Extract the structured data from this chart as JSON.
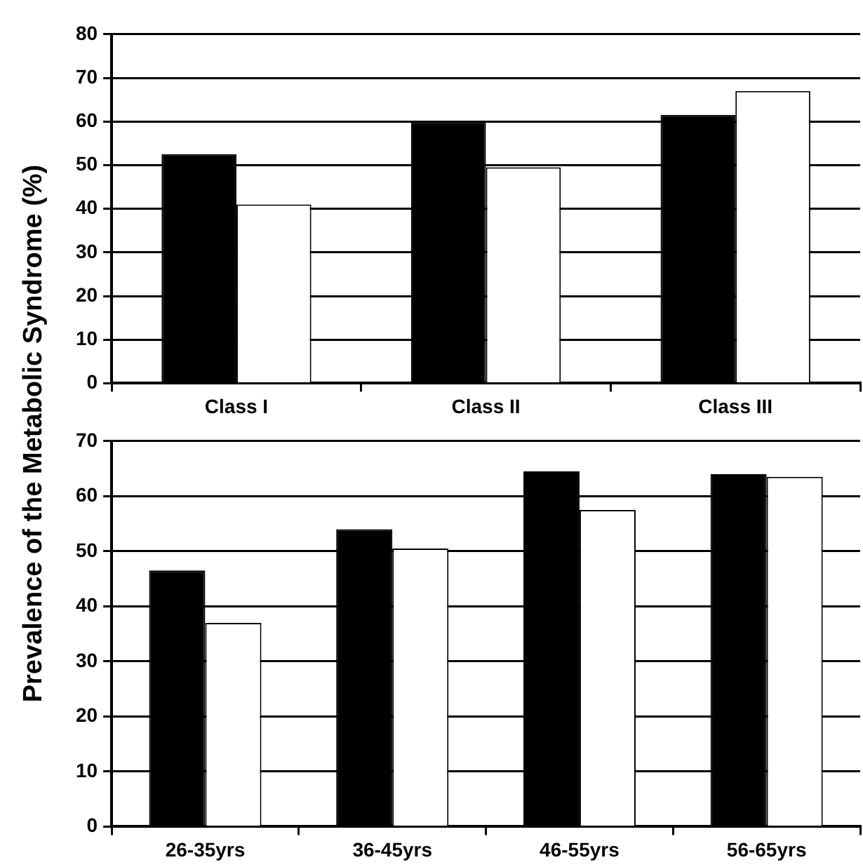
{
  "chart_data": [
    {
      "type": "bar",
      "ylabel": "Prevalence of the Metabolic Syndrome  (%)",
      "categories": [
        "Class I",
        "Class II",
        "Class III"
      ],
      "series": [
        {
          "color": "#000000",
          "values": [
            52.5,
            60,
            61.5
          ]
        },
        {
          "color": "#ffffff",
          "values": [
            41,
            49.5,
            67
          ]
        }
      ],
      "ylim": [
        0,
        80
      ],
      "yticks": [
        0,
        10,
        20,
        30,
        40,
        50,
        60,
        70,
        80
      ],
      "grid": "y",
      "legend": false
    },
    {
      "type": "bar",
      "categories": [
        "26-35yrs",
        "36-45yrs",
        "46-55yrs",
        "56-65yrs"
      ],
      "series": [
        {
          "color": "#000000",
          "values": [
            46.5,
            54,
            64.5,
            64
          ]
        },
        {
          "color": "#ffffff",
          "values": [
            37,
            50.5,
            57.5,
            63.5
          ]
        }
      ],
      "ylim": [
        0,
        70
      ],
      "yticks": [
        0,
        10,
        20,
        30,
        40,
        50,
        60,
        70
      ],
      "grid": "y",
      "legend": false
    }
  ]
}
